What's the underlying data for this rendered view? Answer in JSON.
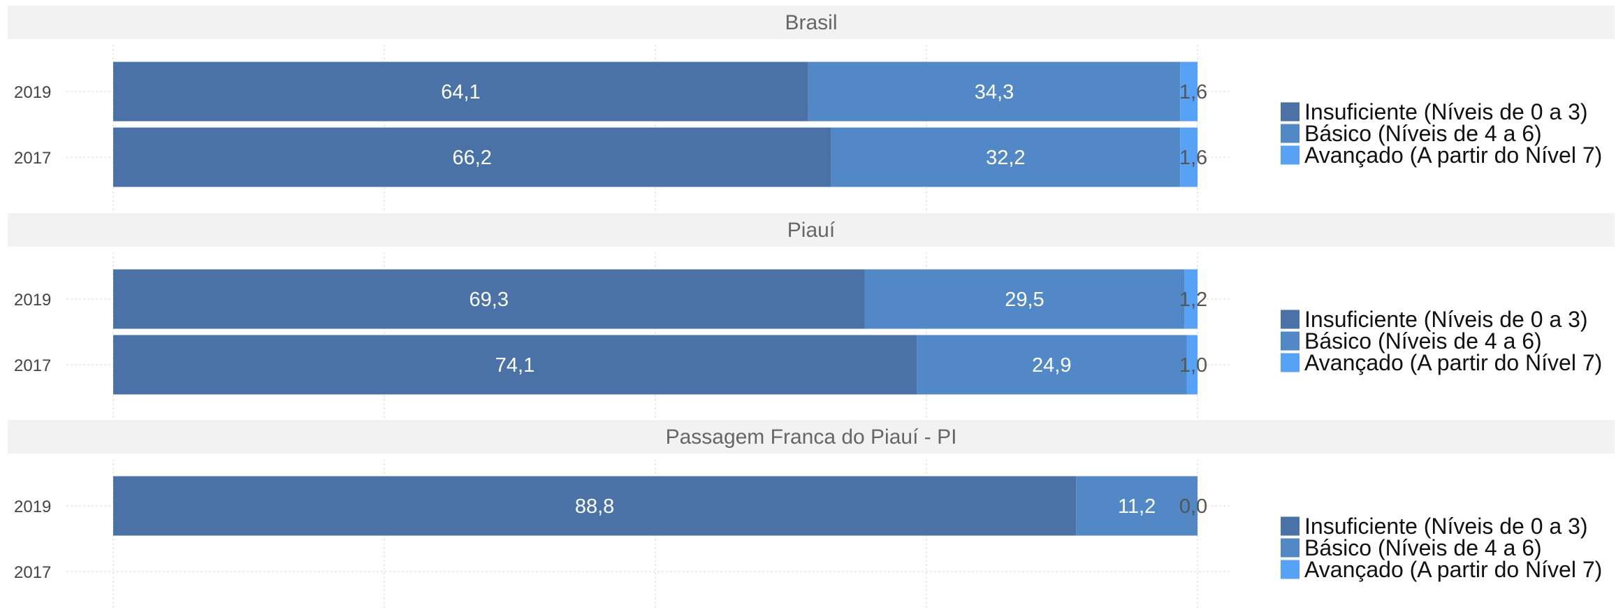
{
  "chart_data": {
    "type": "bar",
    "orientation": "horizontal",
    "stacked": true,
    "xlim": [
      0,
      100
    ],
    "grid": true,
    "legend_position": "right",
    "categories": [
      "2019",
      "2017"
    ],
    "series_names": [
      "Insuficiente (Níveis de 0 a 3)",
      "Básico (Níveis de 4 a 6)",
      "Avançado (A partir do Nível 7)"
    ],
    "colors": [
      "#4b72a6",
      "#5188c5",
      "#57a2f4"
    ],
    "panels": [
      {
        "title": "Brasil",
        "rows": [
          {
            "year": "2019",
            "values": [
              64.1,
              34.3,
              1.6
            ],
            "labels": [
              "64,1",
              "34,3",
              "1,6"
            ]
          },
          {
            "year": "2017",
            "values": [
              66.2,
              32.2,
              1.6
            ],
            "labels": [
              "66,2",
              "32,2",
              "1,6"
            ]
          }
        ]
      },
      {
        "title": "Piauí",
        "rows": [
          {
            "year": "2019",
            "values": [
              69.3,
              29.5,
              1.2
            ],
            "labels": [
              "69,3",
              "29,5",
              "1,2"
            ]
          },
          {
            "year": "2017",
            "values": [
              74.1,
              24.9,
              1.0
            ],
            "labels": [
              "74,1",
              "24,9",
              "1,0"
            ]
          }
        ]
      },
      {
        "title": "Passagem Franca do Piauí - PI",
        "rows": [
          {
            "year": "2019",
            "values": [
              88.8,
              11.2,
              0.0
            ],
            "labels": [
              "88,8",
              "11,2",
              "0,0"
            ]
          },
          {
            "year": "2017",
            "values": null,
            "labels": null
          }
        ]
      }
    ]
  }
}
